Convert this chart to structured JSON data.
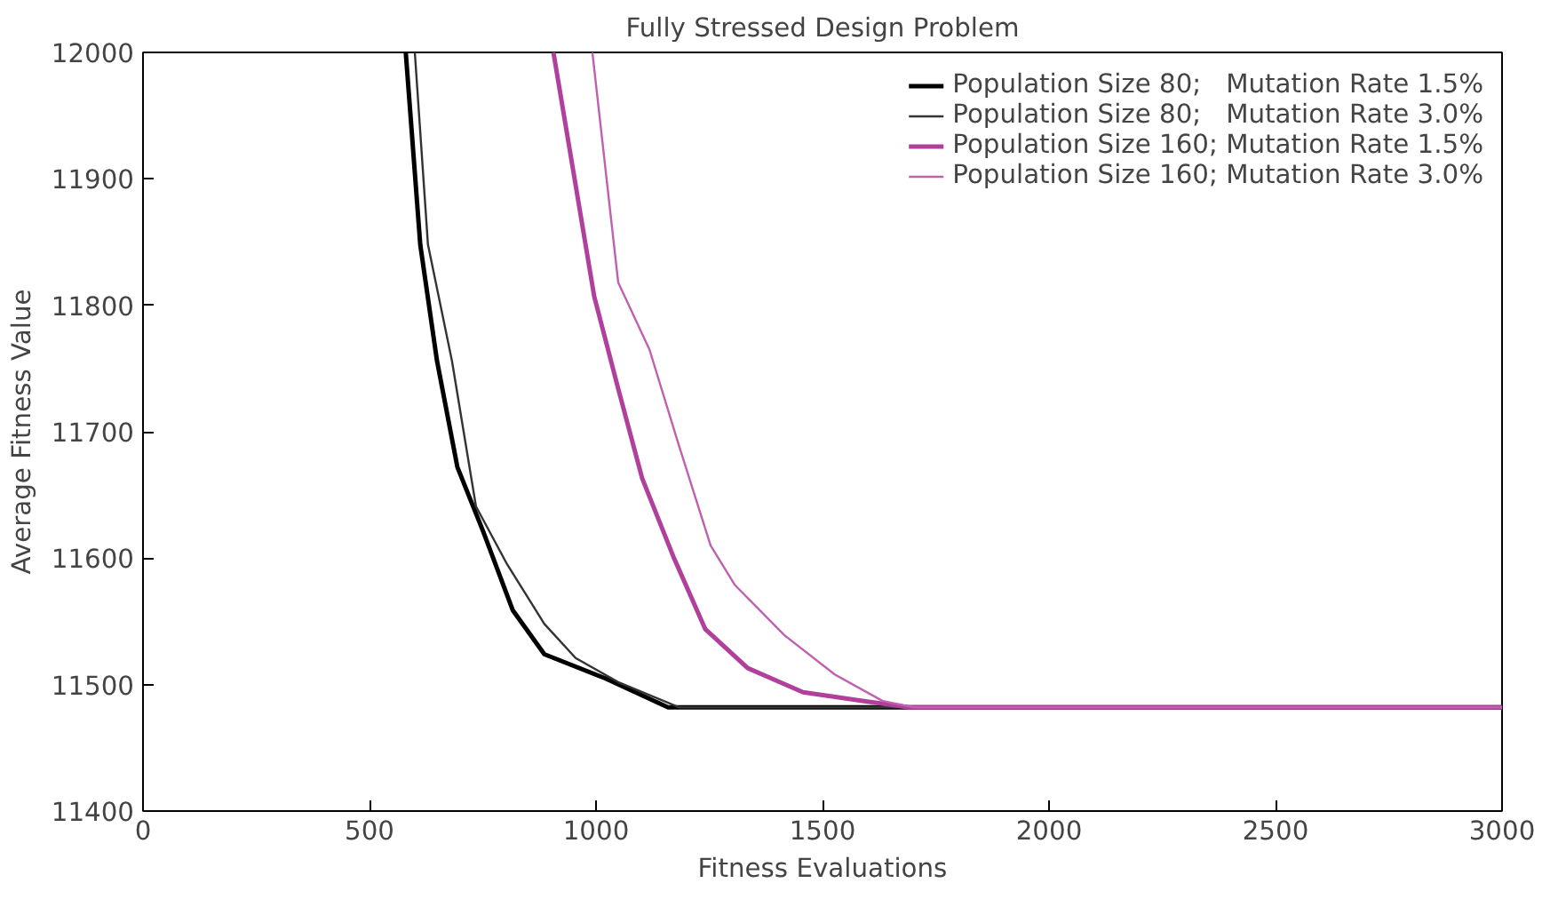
{
  "chart_data": {
    "type": "line",
    "title": "Fully Stressed Design Problem",
    "xlabel": "Fitness Evaluations",
    "ylabel": "Average Fitness Value",
    "xlim": [
      0,
      3000
    ],
    "xticks": [
      0,
      500,
      1000,
      1500,
      2000,
      2500,
      3000
    ],
    "ylim": [
      11400,
      12000
    ],
    "yticks": [
      11400,
      11500,
      11600,
      11700,
      11800,
      11900,
      12000
    ],
    "grid": false,
    "legend": "top right",
    "marker": "none",
    "line_style": "solid",
    "series": [
      {
        "name": "Population Size 80;   Mutation Rate 1.5%",
        "color": "#000000",
        "x": [
          580,
          612,
          649,
          694,
          751,
          816,
          886,
          1020,
          1159,
          3000
        ],
        "values": [
          12000,
          11848,
          11756,
          11672,
          11621,
          11559,
          11524,
          11505,
          11482,
          11482
        ]
      },
      {
        "name": "Population Size 80;   Mutation Rate 3.0%",
        "color": "#333333",
        "x": [
          600,
          629,
          682,
          735,
          804,
          886,
          955,
          1049,
          1184,
          3000
        ],
        "values": [
          12000,
          11848,
          11756,
          11641,
          11595,
          11548,
          11521,
          11502,
          11482,
          11482
        ]
      },
      {
        "name": "Population Size 160; Mutation Rate 1.5%",
        "color": "#b0409c",
        "x": [
          906,
          955,
          996,
          1049,
          1102,
          1171,
          1241,
          1335,
          1457,
          1592,
          1690,
          3000
        ],
        "values": [
          12000,
          11895,
          11807,
          11734,
          11663,
          11601,
          11544,
          11513,
          11494,
          11487,
          11482,
          11482
        ]
      },
      {
        "name": "Population Size 160; Mutation Rate 3.0%",
        "color": "#c060b0",
        "x": [
          992,
          1049,
          1118,
          1184,
          1253,
          1306,
          1416,
          1527,
          1633,
          1702,
          3000
        ],
        "values": [
          12000,
          11818,
          11765,
          11688,
          11610,
          11579,
          11539,
          11508,
          11487,
          11482,
          11482
        ]
      }
    ]
  }
}
